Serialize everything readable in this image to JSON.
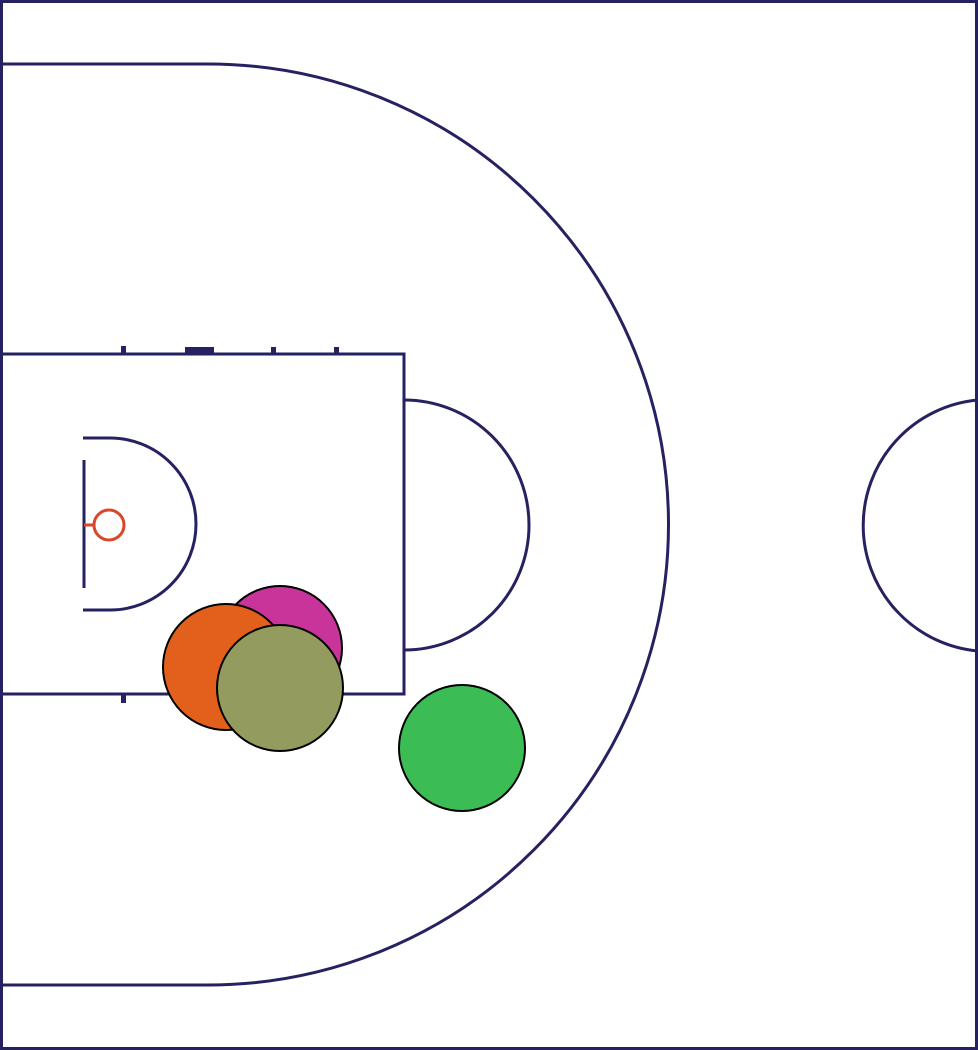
{
  "colors": {
    "background": "#ffffff",
    "court_lines": "#262262",
    "hoop": "#d9472b"
  },
  "players": [
    {
      "name": "magenta-player",
      "color": "#c8349a"
    },
    {
      "name": "orange-player",
      "color": "#e2601c"
    },
    {
      "name": "olive-player",
      "color": "#949b5f"
    },
    {
      "name": "green-player",
      "color": "#3cbc54"
    }
  ]
}
